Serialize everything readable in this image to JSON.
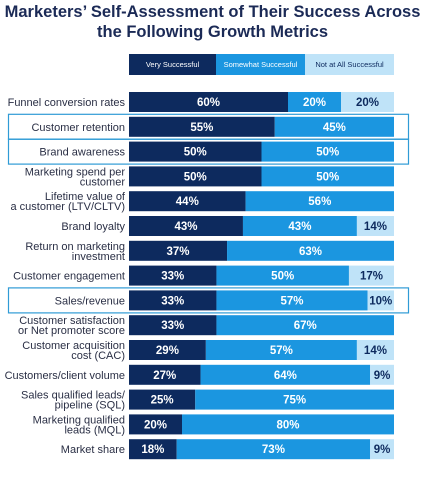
{
  "chart_data": {
    "type": "bar",
    "orientation": "horizontal",
    "stacked": true,
    "title": "Marketers’ Self-Assessment of Their Success Across the Following Growth Metrics",
    "xlim": [
      0,
      100
    ],
    "unit": "%",
    "categories": [
      [
        "Funnel conversion rates"
      ],
      [
        "Customer retention"
      ],
      [
        "Brand awareness"
      ],
      [
        "Marketing spend per",
        "customer"
      ],
      [
        "Lifetime value of",
        "a customer (LTV/CLTV)"
      ],
      [
        "Brand loyalty"
      ],
      [
        "Return on marketing",
        "investment"
      ],
      [
        "Customer engagement"
      ],
      [
        "Sales/revenue"
      ],
      [
        "Customer satisfaction",
        "or Net promoter score"
      ],
      [
        "Customer acquisition",
        "cost (CAC)"
      ],
      [
        "Customers/client volume"
      ],
      [
        "Sales qualified leads/",
        "pipeline (SQL)"
      ],
      [
        "Marketing qualified",
        "leads (MQL)"
      ],
      [
        "Market share"
      ]
    ],
    "highlighted_categories": [
      1,
      2,
      8
    ],
    "series": [
      {
        "name": "Very Successful",
        "color": "#0d2a5e",
        "values": [
          60,
          55,
          50,
          50,
          44,
          43,
          37,
          33,
          33,
          33,
          29,
          27,
          25,
          20,
          18
        ],
        "labels": [
          "60%",
          "55%",
          "50%",
          "50%",
          "44%",
          "43%",
          "37%",
          "33%",
          "33%",
          "33%",
          "29%",
          "27%",
          "25%",
          "20%",
          "18%"
        ]
      },
      {
        "name": "Somewhat Successful",
        "color": "#1b96e0",
        "values": [
          20,
          45,
          50,
          50,
          56,
          43,
          63,
          50,
          57,
          67,
          57,
          64,
          75,
          80,
          73
        ],
        "labels": [
          "20%",
          "45%",
          "50%",
          "50%",
          "56%",
          "43%",
          "63%",
          "50%",
          "57%",
          "67%",
          "57%",
          "64%",
          "75%",
          "80%",
          "73%"
        ]
      },
      {
        "name": "Not at All Successful",
        "color": "#bfe3f8",
        "values": [
          20,
          0,
          0,
          0,
          0,
          14,
          0,
          17,
          10,
          0,
          14,
          9,
          0,
          0,
          9
        ],
        "labels": [
          "20%",
          "",
          "",
          "",
          "",
          "14%",
          "",
          "17%",
          "10%",
          "",
          "14%",
          "9%",
          "",
          "",
          "9%"
        ]
      }
    ]
  },
  "colors": {
    "very": "#0d2a5e",
    "somewhat": "#1b96e0",
    "not_at_all": "#bfe3f8",
    "title": "#1b2a56",
    "highlight_border": "#2f9bd6"
  }
}
